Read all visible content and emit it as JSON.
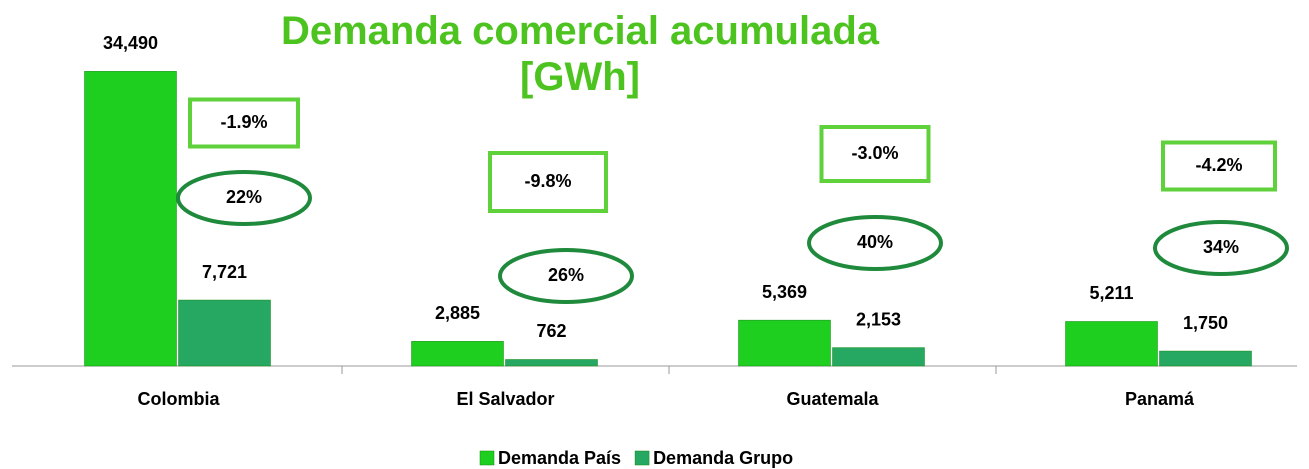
{
  "chart_data": {
    "type": "bar",
    "title": "Demanda comercial acumulada [GWh]",
    "categories": [
      "Colombia",
      "El Salvador",
      "Guatemala",
      "Panamá"
    ],
    "series": [
      {
        "name": "Demanda País",
        "color": "#1fcf1f",
        "values": [
          34490,
          2885,
          5369,
          5211
        ],
        "value_labels": [
          "34,490",
          "2,885",
          "5,369",
          "5,211"
        ]
      },
      {
        "name": "Demanda Grupo",
        "color": "#27a862",
        "values": [
          7721,
          762,
          2153,
          1750
        ],
        "value_labels": [
          "7,721",
          "762",
          "2,153",
          "1,750"
        ]
      }
    ],
    "annotations": {
      "growth": [
        "-1.9%",
        "-9.8%",
        "-3.0%",
        "-4.2%"
      ],
      "share": [
        "22%",
        "26%",
        "40%",
        "34%"
      ]
    },
    "ylim": [
      0,
      35000
    ],
    "legend": "bottom"
  }
}
